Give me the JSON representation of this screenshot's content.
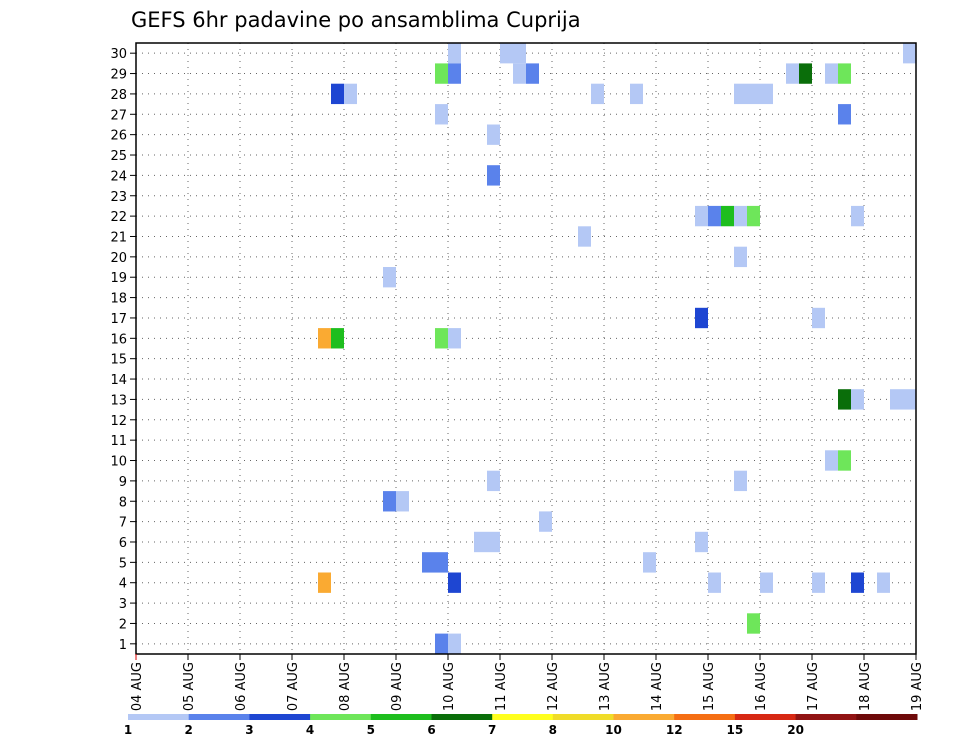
{
  "chart_data": {
    "type": "heatmap",
    "title": "GEFS 6hr padavine po ansamblima Cuprija",
    "xlabel": "",
    "ylabel": "",
    "x_tick_labels": [
      "04 AUG",
      "05 AUG",
      "06 AUG",
      "07 AUG",
      "08 AUG",
      "09 AUG",
      "10 AUG",
      "11 AUG",
      "12 AUG",
      "13 AUG",
      "14 AUG",
      "15 AUG",
      "16 AUG",
      "17 AUG",
      "18 AUG",
      "19 AUG"
    ],
    "y_tick_labels": [
      "1",
      "2",
      "3",
      "4",
      "5",
      "6",
      "7",
      "8",
      "9",
      "10",
      "11",
      "12",
      "13",
      "14",
      "15",
      "16",
      "17",
      "18",
      "19",
      "20",
      "21",
      "22",
      "23",
      "24",
      "25",
      "26",
      "27",
      "28",
      "29",
      "30"
    ],
    "x_unit": "6-hour step from 04 AUG 00Z",
    "xlim": [
      0,
      60
    ],
    "ylim": [
      0.5,
      30.5
    ],
    "grid": true,
    "grid_style": "dotted",
    "colorbar_labels": [
      "1",
      "2",
      "3",
      "4",
      "5",
      "6",
      "7",
      "8",
      "10",
      "12",
      "15",
      "20"
    ],
    "colorbar_colors": [
      "#b4c8f5",
      "#5a82eb",
      "#1e46d2",
      "#6ee65a",
      "#1ebe1e",
      "#0a6e0a",
      "#ffff1e",
      "#f0dc28",
      "#faaa32",
      "#f56e14",
      "#d72814",
      "#911414",
      "#6e0a0a"
    ],
    "cells": [
      {
        "member": 30,
        "step": 24,
        "bin": 0
      },
      {
        "member": 30,
        "step": 28,
        "bin": 0
      },
      {
        "member": 30,
        "step": 29,
        "bin": 0
      },
      {
        "member": 30,
        "step": 59,
        "bin": 0
      },
      {
        "member": 29,
        "step": 23,
        "bin": 3
      },
      {
        "member": 29,
        "step": 24,
        "bin": 1
      },
      {
        "member": 29,
        "step": 29,
        "bin": 0
      },
      {
        "member": 29,
        "step": 30,
        "bin": 1
      },
      {
        "member": 29,
        "step": 50,
        "bin": 0
      },
      {
        "member": 29,
        "step": 51,
        "bin": 5
      },
      {
        "member": 29,
        "step": 53,
        "bin": 0
      },
      {
        "member": 29,
        "step": 54,
        "bin": 3
      },
      {
        "member": 28,
        "step": 15,
        "bin": 2
      },
      {
        "member": 28,
        "step": 16,
        "bin": 0
      },
      {
        "member": 28,
        "step": 35,
        "bin": 0
      },
      {
        "member": 28,
        "step": 38,
        "bin": 0
      },
      {
        "member": 28,
        "step": 46,
        "bin": 0
      },
      {
        "member": 28,
        "step": 47,
        "bin": 0
      },
      {
        "member": 28,
        "step": 48,
        "bin": 0
      },
      {
        "member": 27,
        "step": 23,
        "bin": 0
      },
      {
        "member": 27,
        "step": 54,
        "bin": 1
      },
      {
        "member": 26,
        "step": 27,
        "bin": 0
      },
      {
        "member": 24,
        "step": 27,
        "bin": 1
      },
      {
        "member": 22,
        "step": 43,
        "bin": 0
      },
      {
        "member": 22,
        "step": 44,
        "bin": 1
      },
      {
        "member": 22,
        "step": 45,
        "bin": 4
      },
      {
        "member": 22,
        "step": 46,
        "bin": 0
      },
      {
        "member": 22,
        "step": 47,
        "bin": 3
      },
      {
        "member": 22,
        "step": 55,
        "bin": 0
      },
      {
        "member": 21,
        "step": 34,
        "bin": 0
      },
      {
        "member": 20,
        "step": 46,
        "bin": 0
      },
      {
        "member": 19,
        "step": 19,
        "bin": 0
      },
      {
        "member": 17,
        "step": 43,
        "bin": 2
      },
      {
        "member": 17,
        "step": 52,
        "bin": 0
      },
      {
        "member": 16,
        "step": 14,
        "bin": 8
      },
      {
        "member": 16,
        "step": 15,
        "bin": 4
      },
      {
        "member": 16,
        "step": 23,
        "bin": 3
      },
      {
        "member": 16,
        "step": 24,
        "bin": 0
      },
      {
        "member": 13,
        "step": 54,
        "bin": 5
      },
      {
        "member": 13,
        "step": 55,
        "bin": 0
      },
      {
        "member": 13,
        "step": 58,
        "bin": 0
      },
      {
        "member": 13,
        "step": 59,
        "bin": 0
      },
      {
        "member": 10,
        "step": 53,
        "bin": 0
      },
      {
        "member": 10,
        "step": 54,
        "bin": 3
      },
      {
        "member": 9,
        "step": 27,
        "bin": 0
      },
      {
        "member": 9,
        "step": 46,
        "bin": 0
      },
      {
        "member": 8,
        "step": 19,
        "bin": 1
      },
      {
        "member": 8,
        "step": 20,
        "bin": 0
      },
      {
        "member": 7,
        "step": 31,
        "bin": 0
      },
      {
        "member": 6,
        "step": 26,
        "bin": 0
      },
      {
        "member": 6,
        "step": 27,
        "bin": 0
      },
      {
        "member": 6,
        "step": 43,
        "bin": 0
      },
      {
        "member": 5,
        "step": 22,
        "bin": 1
      },
      {
        "member": 5,
        "step": 23,
        "bin": 1
      },
      {
        "member": 5,
        "step": 39,
        "bin": 0
      },
      {
        "member": 4,
        "step": 14,
        "bin": 8
      },
      {
        "member": 4,
        "step": 24,
        "bin": 2
      },
      {
        "member": 4,
        "step": 44,
        "bin": 0
      },
      {
        "member": 4,
        "step": 48,
        "bin": 0
      },
      {
        "member": 4,
        "step": 52,
        "bin": 0
      },
      {
        "member": 4,
        "step": 55,
        "bin": 2
      },
      {
        "member": 4,
        "step": 57,
        "bin": 0
      },
      {
        "member": 2,
        "step": 47,
        "bin": 3
      },
      {
        "member": 1,
        "step": 23,
        "bin": 1
      },
      {
        "member": 1,
        "step": 24,
        "bin": 0
      }
    ]
  }
}
